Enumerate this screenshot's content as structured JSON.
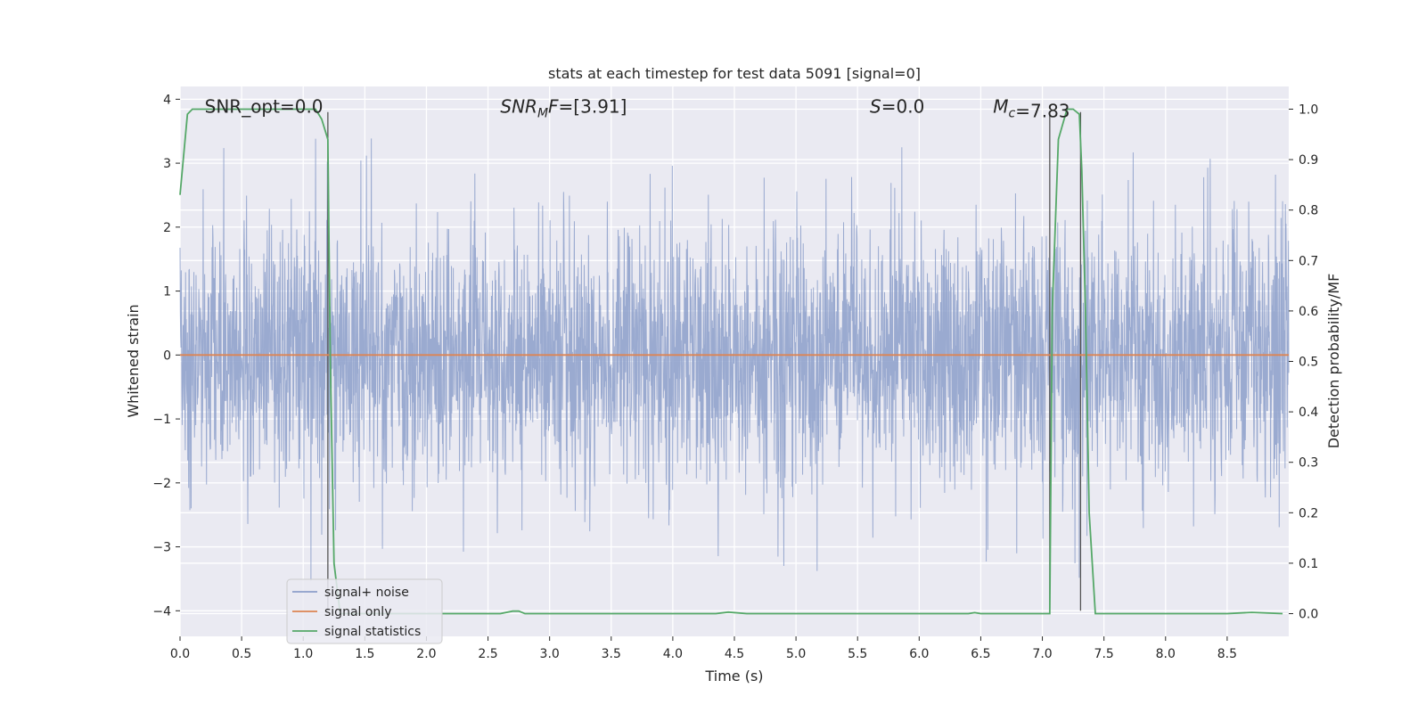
{
  "chart_data": {
    "type": "line",
    "title": "stats at each timestep for test data 5091 [signal=0]",
    "xlabel": "Time (s)",
    "ylabel_left": "Whitened strain",
    "ylabel_right": "Detection probability/MF",
    "xlim": [
      0.0,
      9.0
    ],
    "ylim_left": [
      -4.4,
      4.2
    ],
    "ylim_right": [
      -0.045,
      1.045
    ],
    "x_ticks": [
      "0.0",
      "0.5",
      "1.0",
      "1.5",
      "2.0",
      "2.5",
      "3.0",
      "3.5",
      "4.0",
      "4.5",
      "5.0",
      "5.5",
      "6.0",
      "6.5",
      "7.0",
      "7.5",
      "8.0",
      "8.5"
    ],
    "y_left_ticks": [
      "4",
      "3",
      "2",
      "1",
      "0",
      "−1",
      "−2",
      "−3",
      "−4"
    ],
    "y_right_ticks": [
      "1.0",
      "0.9",
      "0.8",
      "0.7",
      "0.6",
      "0.5",
      "0.4",
      "0.3",
      "0.2",
      "0.1",
      "0.0"
    ],
    "grid": true,
    "legend_position": "lower-left",
    "annotations": [
      {
        "text": "SNR_opt=0.0",
        "x": 0.2,
        "y": 3.9
      },
      {
        "text": "SNR",
        "sub": "M",
        "rest": "F=[3.91]",
        "x": 2.6,
        "y": 3.9
      },
      {
        "text": "S",
        "rest": "=0.0",
        "x": 5.6,
        "y": 3.9
      },
      {
        "text": "M",
        "sub": "c",
        "rest": "=7.83",
        "x": 6.6,
        "y": 3.9
      }
    ],
    "vlines_x": [
      1.2,
      7.06,
      7.31
    ],
    "vlines_range_left": [
      -4.0,
      3.8
    ],
    "series": [
      {
        "name": "signal+ noise",
        "color": "#8c9fca",
        "style": "noise",
        "amplitude_sigma": 1.0
      },
      {
        "name": "signal only",
        "color": "#dd8452",
        "x": [
          0.0,
          9.0
        ],
        "y": [
          0.0,
          0.0
        ]
      },
      {
        "name": "signal statistics",
        "color": "#55a868",
        "axis": "right",
        "x": [
          0.0,
          0.06,
          0.1,
          0.2,
          0.3,
          0.5,
          0.7,
          0.9,
          1.1,
          1.15,
          1.2,
          1.22,
          1.25,
          1.3,
          2.0,
          2.3,
          2.6,
          2.7,
          2.75,
          2.8,
          3.5,
          4.0,
          4.35,
          4.45,
          4.6,
          5.0,
          6.0,
          6.4,
          6.45,
          6.5,
          7.0,
          7.06,
          7.08,
          7.13,
          7.2,
          7.25,
          7.3,
          7.32,
          7.35,
          7.38,
          7.43,
          7.5,
          8.0,
          8.5,
          8.7,
          8.95
        ],
        "y": [
          0.83,
          0.99,
          1.0,
          1.0,
          1.0,
          1.0,
          1.0,
          1.0,
          1.0,
          0.98,
          0.94,
          0.5,
          0.1,
          0.0,
          0.0,
          0.0,
          0.0,
          0.005,
          0.005,
          0.0,
          0.0,
          0.0,
          0.0,
          0.003,
          0.0,
          0.0,
          0.0,
          0.0,
          0.002,
          0.0,
          0.0,
          0.0,
          0.6,
          0.94,
          1.0,
          1.0,
          0.99,
          0.88,
          0.6,
          0.2,
          0.0,
          0.0,
          0.0,
          0.0,
          0.0025,
          0.0
        ]
      }
    ]
  }
}
